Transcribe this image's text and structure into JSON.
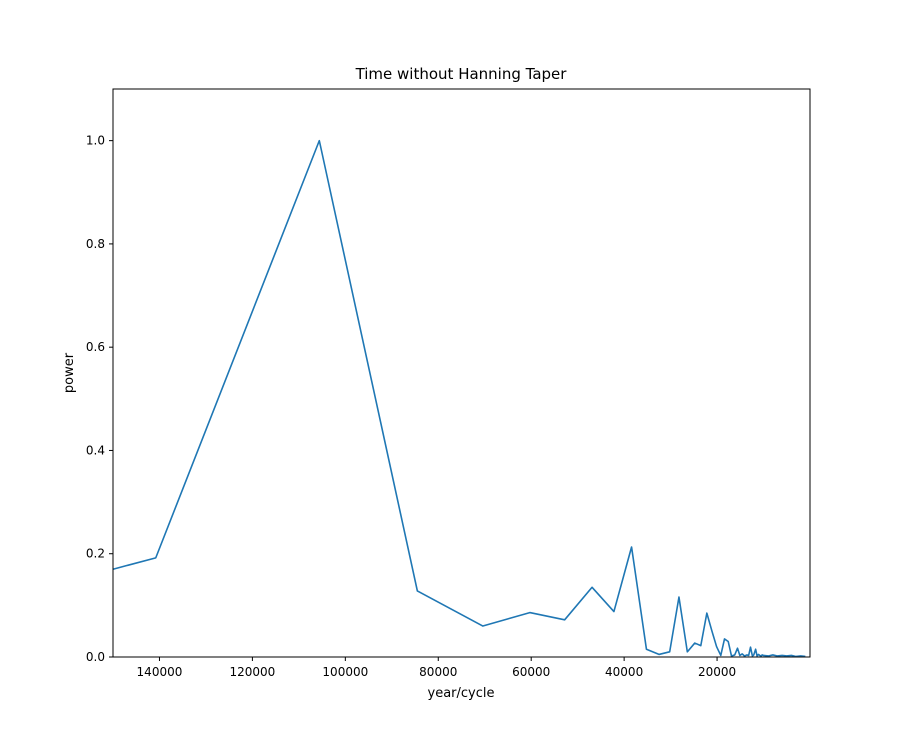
{
  "chart_data": {
    "type": "line",
    "title": "Time without Hanning Taper",
    "xlabel": "year/cycle",
    "ylabel": "power",
    "xlim": [
      150000,
      0
    ],
    "ylim": [
      0,
      1.1
    ],
    "x_ticks": [
      140000,
      120000,
      100000,
      80000,
      60000,
      40000,
      20000
    ],
    "x_tick_labels": [
      "140000",
      "120000",
      "100000",
      "80000",
      "60000",
      "40000",
      "20000"
    ],
    "y_ticks": [
      0,
      0.2,
      0.4,
      0.6,
      0.8,
      1.0
    ],
    "y_tick_labels": [
      "0.0",
      "0.2",
      "0.4",
      "0.6",
      "0.8",
      "1.0"
    ],
    "grid": false,
    "legend": "none",
    "series_color": "#1f77b4",
    "series": [
      {
        "x": [
          150000,
          140800,
          105600,
          84500,
          70400,
          60300,
          52800,
          46900,
          42200,
          38400,
          35200,
          32500,
          30200,
          28200,
          26400,
          24800,
          23500,
          22200,
          21100,
          20100,
          19200,
          18400,
          17600,
          16900,
          16200,
          15600,
          15100,
          14600,
          14100,
          13600,
          13200,
          12800,
          12400,
          12100,
          11700,
          11400,
          11100,
          10800,
          10500,
          10300,
          10000,
          9000,
          8000,
          7000,
          6000,
          5000,
          4000,
          3000,
          2000,
          1000
        ],
        "y": [
          0.17,
          0.192,
          1.0,
          0.128,
          0.06,
          0.086,
          0.072,
          0.135,
          0.088,
          0.213,
          0.015,
          0.005,
          0.01,
          0.116,
          0.01,
          0.027,
          0.022,
          0.085,
          0.05,
          0.02,
          0.003,
          0.035,
          0.03,
          0.002,
          0.004,
          0.017,
          0.003,
          0.006,
          0.002,
          0.004,
          0.003,
          0.019,
          0.002,
          0.004,
          0.015,
          0.002,
          0.005,
          0.003,
          0.002,
          0.004,
          0.003,
          0.002,
          0.004,
          0.002,
          0.003,
          0.002,
          0.003,
          0.001,
          0.002,
          0.001
        ]
      }
    ]
  }
}
